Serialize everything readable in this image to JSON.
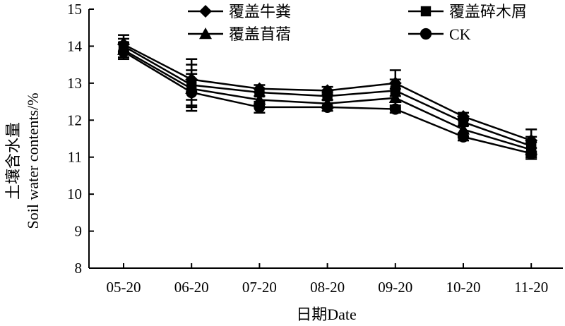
{
  "chart_data": {
    "type": "line",
    "xlabel": "日期Date",
    "ylabel_cn": "土壤含水量",
    "ylabel_en": "Soil  water contents/%",
    "ylim": [
      8,
      15
    ],
    "yticks": [
      "8",
      "9",
      "10",
      "11",
      "12",
      "13",
      "14",
      "15"
    ],
    "categories": [
      "05-20",
      "06-20",
      "07-20",
      "08-20",
      "09-20",
      "10-20",
      "11-20"
    ],
    "grid": false,
    "legend_position": "top",
    "series": [
      {
        "name": "覆盖牛粪",
        "marker": "diamond",
        "values": [
          14.05,
          13.1,
          12.85,
          12.8,
          13.0,
          12.1,
          11.45
        ],
        "errors": [
          0.25,
          0.55,
          0.1,
          0.1,
          0.35,
          0.1,
          0.3
        ]
      },
      {
        "name": "覆盖碎木屑",
        "marker": "square",
        "values": [
          14.0,
          12.95,
          12.75,
          12.65,
          12.8,
          11.95,
          11.3
        ],
        "errors": [
          0.2,
          0.55,
          0.1,
          0.1,
          0.3,
          0.1,
          0.25
        ]
      },
      {
        "name": "覆盖苜蓿",
        "marker": "triangle",
        "values": [
          13.9,
          12.85,
          12.55,
          12.45,
          12.6,
          11.75,
          11.2
        ],
        "errors": [
          0.2,
          0.5,
          0.1,
          0.1,
          0.25,
          0.1,
          0.2
        ]
      },
      {
        "name": "CK",
        "marker": "circle",
        "values": [
          13.85,
          12.75,
          12.35,
          12.35,
          12.3,
          11.55,
          11.1
        ],
        "errors": [
          0.2,
          0.5,
          0.15,
          0.1,
          0.1,
          0.1,
          0.15
        ]
      }
    ]
  }
}
